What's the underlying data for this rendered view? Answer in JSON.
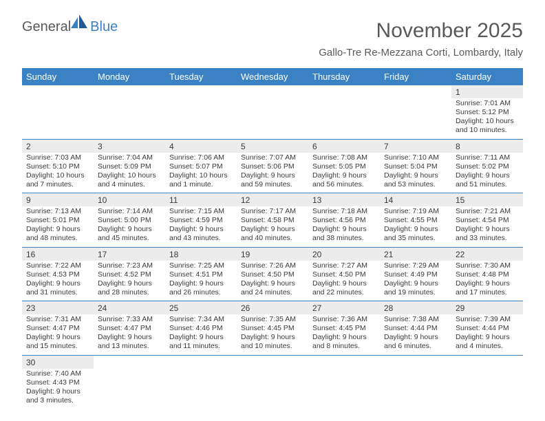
{
  "logo": {
    "part1": "General",
    "part2": "Blue"
  },
  "title": "November 2025",
  "location": "Gallo-Tre Re-Mezzana Corti, Lombardy, Italy",
  "day_headers": [
    "Sunday",
    "Monday",
    "Tuesday",
    "Wednesday",
    "Thursday",
    "Friday",
    "Saturday"
  ],
  "colors": {
    "header_bg": "#3b82c4",
    "header_text": "#ffffff",
    "body_text": "#3a3a3a",
    "title_text": "#595959",
    "shade_bg": "#ececec",
    "divider": "#3b82c4"
  },
  "weeks": [
    [
      {
        "day": "",
        "sunrise": "",
        "sunset": "",
        "daylight": ""
      },
      {
        "day": "",
        "sunrise": "",
        "sunset": "",
        "daylight": ""
      },
      {
        "day": "",
        "sunrise": "",
        "sunset": "",
        "daylight": ""
      },
      {
        "day": "",
        "sunrise": "",
        "sunset": "",
        "daylight": ""
      },
      {
        "day": "",
        "sunrise": "",
        "sunset": "",
        "daylight": ""
      },
      {
        "day": "",
        "sunrise": "",
        "sunset": "",
        "daylight": ""
      },
      {
        "day": "1",
        "sunrise": "Sunrise: 7:01 AM",
        "sunset": "Sunset: 5:12 PM",
        "daylight": "Daylight: 10 hours and 10 minutes."
      }
    ],
    [
      {
        "day": "2",
        "sunrise": "Sunrise: 7:03 AM",
        "sunset": "Sunset: 5:10 PM",
        "daylight": "Daylight: 10 hours and 7 minutes."
      },
      {
        "day": "3",
        "sunrise": "Sunrise: 7:04 AM",
        "sunset": "Sunset: 5:09 PM",
        "daylight": "Daylight: 10 hours and 4 minutes."
      },
      {
        "day": "4",
        "sunrise": "Sunrise: 7:06 AM",
        "sunset": "Sunset: 5:07 PM",
        "daylight": "Daylight: 10 hours and 1 minute."
      },
      {
        "day": "5",
        "sunrise": "Sunrise: 7:07 AM",
        "sunset": "Sunset: 5:06 PM",
        "daylight": "Daylight: 9 hours and 59 minutes."
      },
      {
        "day": "6",
        "sunrise": "Sunrise: 7:08 AM",
        "sunset": "Sunset: 5:05 PM",
        "daylight": "Daylight: 9 hours and 56 minutes."
      },
      {
        "day": "7",
        "sunrise": "Sunrise: 7:10 AM",
        "sunset": "Sunset: 5:04 PM",
        "daylight": "Daylight: 9 hours and 53 minutes."
      },
      {
        "day": "8",
        "sunrise": "Sunrise: 7:11 AM",
        "sunset": "Sunset: 5:02 PM",
        "daylight": "Daylight: 9 hours and 51 minutes."
      }
    ],
    [
      {
        "day": "9",
        "sunrise": "Sunrise: 7:13 AM",
        "sunset": "Sunset: 5:01 PM",
        "daylight": "Daylight: 9 hours and 48 minutes."
      },
      {
        "day": "10",
        "sunrise": "Sunrise: 7:14 AM",
        "sunset": "Sunset: 5:00 PM",
        "daylight": "Daylight: 9 hours and 45 minutes."
      },
      {
        "day": "11",
        "sunrise": "Sunrise: 7:15 AM",
        "sunset": "Sunset: 4:59 PM",
        "daylight": "Daylight: 9 hours and 43 minutes."
      },
      {
        "day": "12",
        "sunrise": "Sunrise: 7:17 AM",
        "sunset": "Sunset: 4:58 PM",
        "daylight": "Daylight: 9 hours and 40 minutes."
      },
      {
        "day": "13",
        "sunrise": "Sunrise: 7:18 AM",
        "sunset": "Sunset: 4:56 PM",
        "daylight": "Daylight: 9 hours and 38 minutes."
      },
      {
        "day": "14",
        "sunrise": "Sunrise: 7:19 AM",
        "sunset": "Sunset: 4:55 PM",
        "daylight": "Daylight: 9 hours and 35 minutes."
      },
      {
        "day": "15",
        "sunrise": "Sunrise: 7:21 AM",
        "sunset": "Sunset: 4:54 PM",
        "daylight": "Daylight: 9 hours and 33 minutes."
      }
    ],
    [
      {
        "day": "16",
        "sunrise": "Sunrise: 7:22 AM",
        "sunset": "Sunset: 4:53 PM",
        "daylight": "Daylight: 9 hours and 31 minutes."
      },
      {
        "day": "17",
        "sunrise": "Sunrise: 7:23 AM",
        "sunset": "Sunset: 4:52 PM",
        "daylight": "Daylight: 9 hours and 28 minutes."
      },
      {
        "day": "18",
        "sunrise": "Sunrise: 7:25 AM",
        "sunset": "Sunset: 4:51 PM",
        "daylight": "Daylight: 9 hours and 26 minutes."
      },
      {
        "day": "19",
        "sunrise": "Sunrise: 7:26 AM",
        "sunset": "Sunset: 4:50 PM",
        "daylight": "Daylight: 9 hours and 24 minutes."
      },
      {
        "day": "20",
        "sunrise": "Sunrise: 7:27 AM",
        "sunset": "Sunset: 4:50 PM",
        "daylight": "Daylight: 9 hours and 22 minutes."
      },
      {
        "day": "21",
        "sunrise": "Sunrise: 7:29 AM",
        "sunset": "Sunset: 4:49 PM",
        "daylight": "Daylight: 9 hours and 19 minutes."
      },
      {
        "day": "22",
        "sunrise": "Sunrise: 7:30 AM",
        "sunset": "Sunset: 4:48 PM",
        "daylight": "Daylight: 9 hours and 17 minutes."
      }
    ],
    [
      {
        "day": "23",
        "sunrise": "Sunrise: 7:31 AM",
        "sunset": "Sunset: 4:47 PM",
        "daylight": "Daylight: 9 hours and 15 minutes."
      },
      {
        "day": "24",
        "sunrise": "Sunrise: 7:33 AM",
        "sunset": "Sunset: 4:47 PM",
        "daylight": "Daylight: 9 hours and 13 minutes."
      },
      {
        "day": "25",
        "sunrise": "Sunrise: 7:34 AM",
        "sunset": "Sunset: 4:46 PM",
        "daylight": "Daylight: 9 hours and 11 minutes."
      },
      {
        "day": "26",
        "sunrise": "Sunrise: 7:35 AM",
        "sunset": "Sunset: 4:45 PM",
        "daylight": "Daylight: 9 hours and 10 minutes."
      },
      {
        "day": "27",
        "sunrise": "Sunrise: 7:36 AM",
        "sunset": "Sunset: 4:45 PM",
        "daylight": "Daylight: 9 hours and 8 minutes."
      },
      {
        "day": "28",
        "sunrise": "Sunrise: 7:38 AM",
        "sunset": "Sunset: 4:44 PM",
        "daylight": "Daylight: 9 hours and 6 minutes."
      },
      {
        "day": "29",
        "sunrise": "Sunrise: 7:39 AM",
        "sunset": "Sunset: 4:44 PM",
        "daylight": "Daylight: 9 hours and 4 minutes."
      }
    ],
    [
      {
        "day": "30",
        "sunrise": "Sunrise: 7:40 AM",
        "sunset": "Sunset: 4:43 PM",
        "daylight": "Daylight: 9 hours and 3 minutes."
      },
      {
        "day": "",
        "sunrise": "",
        "sunset": "",
        "daylight": ""
      },
      {
        "day": "",
        "sunrise": "",
        "sunset": "",
        "daylight": ""
      },
      {
        "day": "",
        "sunrise": "",
        "sunset": "",
        "daylight": ""
      },
      {
        "day": "",
        "sunrise": "",
        "sunset": "",
        "daylight": ""
      },
      {
        "day": "",
        "sunrise": "",
        "sunset": "",
        "daylight": ""
      },
      {
        "day": "",
        "sunrise": "",
        "sunset": "",
        "daylight": ""
      }
    ]
  ]
}
